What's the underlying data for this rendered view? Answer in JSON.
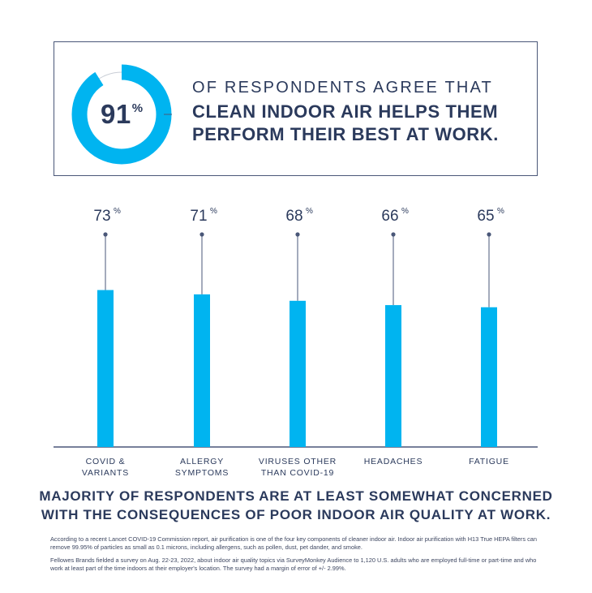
{
  "hero": {
    "value": 91,
    "number": "91",
    "unit": "%",
    "line1": "OF RESPONDENTS AGREE THAT",
    "line2": "CLEAN INDOOR AIR HELPS THEM",
    "line3": "PERFORM THEIR BEST AT WORK.",
    "ring_color": "#00b4f0",
    "track_color": "#c9ced6"
  },
  "chart_data": {
    "type": "bar",
    "categories": [
      [
        "COVID &",
        "VARIANTS"
      ],
      [
        "ALLERGY",
        "SYMPTOMS"
      ],
      [
        "VIRUSES OTHER",
        "THAN COVID-19"
      ],
      [
        "HEADACHES"
      ],
      [
        "FATIGUE"
      ]
    ],
    "values": [
      73,
      71,
      68,
      66,
      65
    ],
    "value_labels": [
      "73",
      "71",
      "68",
      "66",
      "65"
    ],
    "unit": "%",
    "ylim": [
      0,
      100
    ],
    "bar_color": "#00b4f0",
    "stem_color": "#4a5778",
    "axis_color": "#4a5778"
  },
  "tagline": {
    "line1": "MAJORITY OF RESPONDENTS ARE AT LEAST SOMEWHAT CONCERNED",
    "line2": "WITH THE CONSEQUENCES OF POOR INDOOR AIR QUALITY AT WORK."
  },
  "footnotes": [
    "According to a recent Lancet COVID-19 Commission report, air purification is one of the four key components of cleaner indoor air. Indoor air purification with H13 True HEPA filters can remove 99.95% of particles as small as 0.1 microns, including allergens, such as pollen, dust, pet dander, and smoke.",
    "Fellowes Brands fielded a survey on Aug. 22-23, 2022, about indoor air quality topics via SurveyMonkey Audience to 1,120 U.S. adults who are employed full-time or part-time and who work at least part of the time indoors at their employer's location. The survey had a margin of error of +/- 2.99%."
  ]
}
